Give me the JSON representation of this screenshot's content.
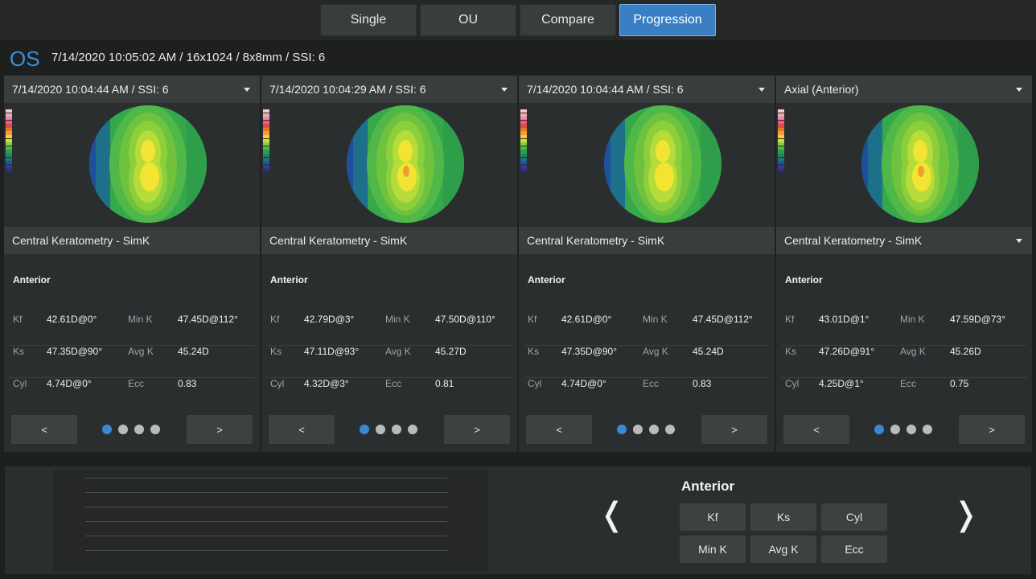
{
  "tabs": [
    "Single",
    "OU",
    "Compare",
    "Progression"
  ],
  "active_tab": "Progression",
  "header": {
    "eye": "OS",
    "scan_info": "7/14/2020 10:05:02 AM / 16x1024 / 8x8mm / SSI: 6"
  },
  "panels": [
    {
      "selector": "7/14/2020 10:04:44 AM / SSI: 6",
      "map_select": "Central Keratometry - SimK",
      "section": "Anterior",
      "kf_label": "Kf",
      "kf": "42.61D@0°",
      "mink_label": "Min K",
      "mink": "47.45D@112°",
      "ks_label": "Ks",
      "ks": "47.35D@90°",
      "avgk_label": "Avg K",
      "avgk": "45.24D",
      "cyl_label": "Cyl",
      "cyl": "4.74D@0°",
      "ecc_label": "Ecc",
      "ecc": "0.83",
      "prev": "<",
      "next": ">"
    },
    {
      "selector": "7/14/2020 10:04:29 AM / SSI: 6",
      "map_select": "Central Keratometry - SimK",
      "section": "Anterior",
      "kf_label": "Kf",
      "kf": "42.79D@3°",
      "mink_label": "Min K",
      "mink": "47.50D@110°",
      "ks_label": "Ks",
      "ks": "47.11D@93°",
      "avgk_label": "Avg K",
      "avgk": "45.27D",
      "cyl_label": "Cyl",
      "cyl": "4.32D@3°",
      "ecc_label": "Ecc",
      "ecc": "0.81",
      "prev": "<",
      "next": ">"
    },
    {
      "selector": "7/14/2020 10:04:44 AM / SSI: 6",
      "map_select": "Central Keratometry - SimK",
      "section": "Anterior",
      "kf_label": "Kf",
      "kf": "42.61D@0°",
      "mink_label": "Min K",
      "mink": "47.45D@112°",
      "ks_label": "Ks",
      "ks": "47.35D@90°",
      "avgk_label": "Avg K",
      "avgk": "45.24D",
      "cyl_label": "Cyl",
      "cyl": "4.74D@0°",
      "ecc_label": "Ecc",
      "ecc": "0.83",
      "prev": "<",
      "next": ">"
    },
    {
      "selector": "Axial (Anterior)",
      "map_select": "Central Keratometry - SimK",
      "section": "Anterior",
      "kf_label": "Kf",
      "kf": "43.01D@1°",
      "mink_label": "Min K",
      "mink": "47.59D@73°",
      "ks_label": "Ks",
      "ks": "47.26D@91°",
      "avgk_label": "Avg K",
      "avgk": "45.26D",
      "cyl_label": "Cyl",
      "cyl": "4.25D@1°",
      "ecc_label": "Ecc",
      "ecc": "0.75",
      "prev": "<",
      "next": ">"
    }
  ],
  "progression": {
    "title": "Anterior",
    "params": [
      "Kf",
      "Ks",
      "Cyl",
      "Min K",
      "Avg K",
      "Ecc"
    ],
    "prev_arrow": "❬",
    "next_arrow": "❭"
  },
  "colors": {
    "accent": "#3a7fc4",
    "panel": "#2b2e2f",
    "map_scale": [
      "#f4c6d0",
      "#f2a8b8",
      "#ee8aa0",
      "#e8607c",
      "#e24a4a",
      "#e8782c",
      "#f0a030",
      "#f5d132",
      "#c8e03a",
      "#8ccf3c",
      "#4fb848",
      "#2e9e4a",
      "#1e8a5a",
      "#1d6f8a",
      "#1f56a8",
      "#2a3e9e",
      "#2e3280"
    ]
  }
}
